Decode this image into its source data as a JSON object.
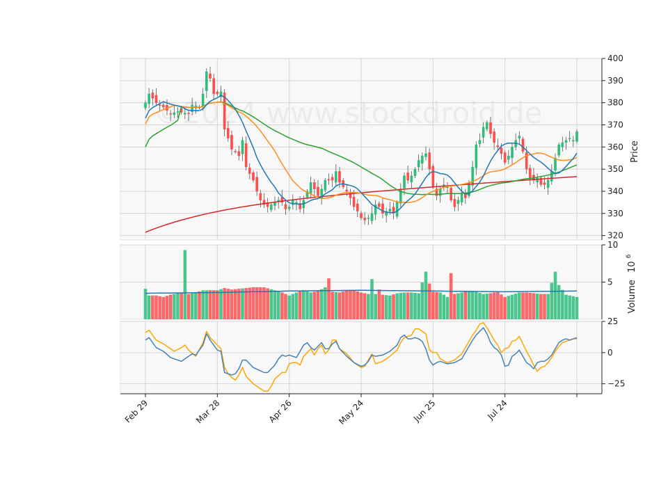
{
  "chart_data": {
    "type": "candlestick",
    "watermark": "©2024 www.stockdroid.de",
    "colors": {
      "up": "#2ebd7b",
      "down": "#ff4d4d",
      "panel_bg": "#f8f8f8",
      "grid": "#d4d4d4",
      "ma_short": "#1f77b4",
      "ma_mid": "#ff8c1a",
      "ma_long": "#2ca02c",
      "ma_200": "#d62728",
      "vol_ma": "#1f77b4",
      "osc_1": "#4682b4",
      "osc_2": "#ffa500"
    },
    "price_panel": {
      "ylabel": "Price",
      "ylim": [
        318,
        400
      ],
      "yticks": [
        320,
        330,
        340,
        350,
        360,
        370,
        380,
        390,
        400
      ]
    },
    "volume_panel": {
      "ylabel": "Volume",
      "ylabel_exponent": "10",
      "ylabel_power": "6",
      "ylim": [
        0,
        10
      ],
      "yticks": [
        5,
        10
      ]
    },
    "osc_panel": {
      "ylim": [
        -33,
        25
      ],
      "yticks": [
        -25,
        0,
        25
      ],
      "ytick_labels": [
        "−25",
        "0",
        "25"
      ]
    },
    "xaxis": {
      "n_bars": 121,
      "ticks": [
        0,
        20,
        40,
        60,
        80,
        100,
        120
      ],
      "tick_labels": [
        "Feb 29",
        "Mar 28",
        "Apr 26",
        "May 24",
        "Jun 25",
        "Jul 24",
        ""
      ]
    },
    "close_anchors": [
      [
        0,
        380
      ],
      [
        1,
        384
      ],
      [
        3,
        380
      ],
      [
        5,
        378
      ],
      [
        7,
        375
      ],
      [
        9,
        376
      ],
      [
        12,
        375
      ],
      [
        13,
        379
      ],
      [
        15,
        378
      ],
      [
        16,
        384
      ],
      [
        17,
        394
      ],
      [
        18,
        391
      ],
      [
        19,
        384
      ],
      [
        20,
        384
      ],
      [
        21,
        385
      ],
      [
        22,
        368
      ],
      [
        23,
        364
      ],
      [
        24,
        359
      ],
      [
        25,
        358
      ],
      [
        26,
        356
      ],
      [
        27,
        363
      ],
      [
        28,
        351
      ],
      [
        30,
        345
      ],
      [
        31,
        340
      ],
      [
        32,
        336
      ],
      [
        33,
        334
      ],
      [
        34,
        333
      ],
      [
        35,
        334
      ],
      [
        36,
        335
      ],
      [
        37,
        336
      ],
      [
        38,
        335
      ],
      [
        39,
        332
      ],
      [
        40,
        333
      ],
      [
        41,
        336
      ],
      [
        42,
        335
      ],
      [
        43,
        332
      ],
      [
        45,
        340
      ],
      [
        46,
        344
      ],
      [
        47,
        341
      ],
      [
        48,
        338
      ],
      [
        49,
        341
      ],
      [
        50,
        345
      ],
      [
        52,
        345
      ],
      [
        53,
        349
      ],
      [
        54,
        344
      ],
      [
        55,
        342
      ],
      [
        56,
        340
      ],
      [
        57,
        337
      ],
      [
        58,
        333
      ],
      [
        59,
        331
      ],
      [
        60,
        328
      ],
      [
        61,
        327
      ],
      [
        62,
        328
      ],
      [
        63,
        330
      ],
      [
        64,
        334
      ],
      [
        65,
        333
      ],
      [
        66,
        330
      ],
      [
        67,
        331
      ],
      [
        68,
        332
      ],
      [
        69,
        330
      ],
      [
        70,
        335
      ],
      [
        71,
        341
      ],
      [
        72,
        347
      ],
      [
        73,
        345
      ],
      [
        74,
        347
      ],
      [
        75,
        350
      ],
      [
        76,
        354
      ],
      [
        77,
        356
      ],
      [
        78,
        357
      ],
      [
        79,
        350
      ],
      [
        80,
        342
      ],
      [
        81,
        338
      ],
      [
        82,
        341
      ],
      [
        83,
        343
      ],
      [
        84,
        342
      ],
      [
        85,
        336
      ],
      [
        86,
        333
      ],
      [
        87,
        336
      ],
      [
        88,
        339
      ],
      [
        89,
        337
      ],
      [
        90,
        344
      ],
      [
        91,
        351
      ],
      [
        92,
        361
      ],
      [
        93,
        363
      ],
      [
        94,
        369
      ],
      [
        95,
        371
      ],
      [
        96,
        366
      ],
      [
        97,
        362
      ],
      [
        98,
        360
      ],
      [
        99,
        357
      ],
      [
        100,
        353
      ],
      [
        101,
        356
      ],
      [
        102,
        360
      ],
      [
        103,
        363
      ],
      [
        104,
        365
      ],
      [
        105,
        358
      ],
      [
        106,
        350
      ],
      [
        107,
        346
      ],
      [
        108,
        345
      ],
      [
        109,
        346
      ],
      [
        110,
        343
      ],
      [
        111,
        343
      ],
      [
        112,
        345
      ],
      [
        113,
        349
      ],
      [
        114,
        355
      ],
      [
        115,
        361
      ],
      [
        116,
        362
      ],
      [
        117,
        363
      ],
      [
        118,
        364
      ],
      [
        119,
        363
      ],
      [
        120,
        367
      ]
    ],
    "volume_anchors": [
      [
        0,
        4.1
      ],
      [
        1,
        3.2
      ],
      [
        3,
        3.2
      ],
      [
        5,
        3.0
      ],
      [
        7,
        3.3
      ],
      [
        10,
        3.6
      ],
      [
        11,
        9.3
      ],
      [
        12,
        3.4
      ],
      [
        14,
        3.6
      ],
      [
        16,
        3.9
      ],
      [
        19,
        3.9
      ],
      [
        20,
        3.9
      ],
      [
        22,
        4.2
      ],
      [
        24,
        4.0
      ],
      [
        26,
        4.1
      ],
      [
        30,
        4.3
      ],
      [
        33,
        4.3
      ],
      [
        36,
        3.9
      ],
      [
        38,
        3.6
      ],
      [
        40,
        3.2
      ],
      [
        42,
        3.6
      ],
      [
        44,
        3.9
      ],
      [
        46,
        3.6
      ],
      [
        48,
        3.8
      ],
      [
        50,
        4.3
      ],
      [
        51,
        5.5
      ],
      [
        52,
        3.7
      ],
      [
        54,
        3.6
      ],
      [
        56,
        3.9
      ],
      [
        58,
        3.9
      ],
      [
        60,
        3.6
      ],
      [
        62,
        3.4
      ],
      [
        63,
        5.4
      ],
      [
        64,
        3.4
      ],
      [
        65,
        4.0
      ],
      [
        66,
        3.3
      ],
      [
        68,
        3.2
      ],
      [
        70,
        3.5
      ],
      [
        72,
        3.6
      ],
      [
        74,
        3.6
      ],
      [
        76,
        3.5
      ],
      [
        78,
        6.4
      ],
      [
        79,
        4.8
      ],
      [
        80,
        3.7
      ],
      [
        82,
        3.6
      ],
      [
        84,
        3.0
      ],
      [
        85,
        6.2
      ],
      [
        86,
        3.4
      ],
      [
        88,
        3.6
      ],
      [
        90,
        3.8
      ],
      [
        92,
        3.7
      ],
      [
        94,
        3.4
      ],
      [
        96,
        3.5
      ],
      [
        98,
        3.7
      ],
      [
        100,
        3.0
      ],
      [
        102,
        3.3
      ],
      [
        104,
        3.6
      ],
      [
        106,
        3.6
      ],
      [
        108,
        3.5
      ],
      [
        110,
        3.4
      ],
      [
        112,
        3.4
      ],
      [
        114,
        6.4
      ],
      [
        115,
        4.6
      ],
      [
        117,
        3.3
      ],
      [
        120,
        3.0
      ]
    ],
    "vol_ma_anchors": [
      [
        0,
        3.5
      ],
      [
        20,
        3.6
      ],
      [
        40,
        3.8
      ],
      [
        60,
        3.9
      ],
      [
        80,
        3.8
      ],
      [
        100,
        3.7
      ],
      [
        120,
        3.8
      ]
    ],
    "osc1_anchors": [
      [
        0,
        10
      ],
      [
        1,
        12
      ],
      [
        3,
        4
      ],
      [
        5,
        1
      ],
      [
        7,
        -4
      ],
      [
        9,
        -6
      ],
      [
        10,
        -7
      ],
      [
        12,
        -3
      ],
      [
        13,
        -1
      ],
      [
        14,
        -2
      ],
      [
        16,
        6
      ],
      [
        17,
        15
      ],
      [
        18,
        10
      ],
      [
        20,
        2
      ],
      [
        21,
        1
      ],
      [
        22,
        -16
      ],
      [
        23,
        -17
      ],
      [
        24,
        -18
      ],
      [
        25,
        -17
      ],
      [
        26,
        -13
      ],
      [
        27,
        -6
      ],
      [
        28,
        -6
      ],
      [
        30,
        -12
      ],
      [
        33,
        -16
      ],
      [
        34,
        -16
      ],
      [
        35,
        -13
      ],
      [
        36,
        -10
      ],
      [
        37,
        -5
      ],
      [
        38,
        -2
      ],
      [
        39,
        -3
      ],
      [
        40,
        -2
      ],
      [
        42,
        -4
      ],
      [
        44,
        6
      ],
      [
        45,
        8
      ],
      [
        46,
        4
      ],
      [
        47,
        2
      ],
      [
        48,
        5
      ],
      [
        49,
        8
      ],
      [
        50,
        3
      ],
      [
        51,
        3
      ],
      [
        52,
        7
      ],
      [
        53,
        9
      ],
      [
        54,
        3
      ],
      [
        56,
        -3
      ],
      [
        58,
        -8
      ],
      [
        60,
        -11
      ],
      [
        61,
        -10
      ],
      [
        62,
        -7
      ],
      [
        63,
        -2
      ],
      [
        64,
        -3
      ],
      [
        66,
        -2
      ],
      [
        68,
        1
      ],
      [
        70,
        6
      ],
      [
        71,
        12
      ],
      [
        72,
        14
      ],
      [
        73,
        11
      ],
      [
        74,
        11
      ],
      [
        75,
        12
      ],
      [
        76,
        11
      ],
      [
        77,
        9
      ],
      [
        78,
        3
      ],
      [
        79,
        -6
      ],
      [
        80,
        -10
      ],
      [
        81,
        -8
      ],
      [
        82,
        -7
      ],
      [
        84,
        -9
      ],
      [
        86,
        -8
      ],
      [
        88,
        -5
      ],
      [
        90,
        5
      ],
      [
        91,
        10
      ],
      [
        92,
        14
      ],
      [
        93,
        17
      ],
      [
        94,
        20
      ],
      [
        95,
        15
      ],
      [
        96,
        8
      ],
      [
        97,
        4
      ],
      [
        98,
        2
      ],
      [
        99,
        -2
      ],
      [
        100,
        -11
      ],
      [
        101,
        -10
      ],
      [
        102,
        -3
      ],
      [
        103,
        -1
      ],
      [
        104,
        2
      ],
      [
        105,
        -3
      ],
      [
        106,
        -8
      ],
      [
        107,
        -10
      ],
      [
        108,
        -13
      ],
      [
        109,
        -8
      ],
      [
        110,
        -7
      ],
      [
        111,
        -7
      ],
      [
        112,
        -5
      ],
      [
        113,
        -2
      ],
      [
        114,
        3
      ],
      [
        115,
        8
      ],
      [
        116,
        10
      ],
      [
        117,
        11
      ],
      [
        118,
        10
      ],
      [
        119,
        11
      ],
      [
        120,
        12
      ]
    ],
    "osc2_anchors": [
      [
        0,
        16
      ],
      [
        1,
        18
      ],
      [
        3,
        10
      ],
      [
        5,
        7
      ],
      [
        7,
        3
      ],
      [
        8,
        1
      ],
      [
        10,
        4
      ],
      [
        11,
        6
      ],
      [
        12,
        2
      ],
      [
        14,
        -3
      ],
      [
        16,
        8
      ],
      [
        17,
        17
      ],
      [
        18,
        12
      ],
      [
        20,
        6
      ],
      [
        21,
        3
      ],
      [
        22,
        -12
      ],
      [
        23,
        -17
      ],
      [
        24,
        -20
      ],
      [
        25,
        -22
      ],
      [
        26,
        -18
      ],
      [
        27,
        -12
      ],
      [
        28,
        -19
      ],
      [
        30,
        -25
      ],
      [
        33,
        -31
      ],
      [
        34,
        -31
      ],
      [
        35,
        -27
      ],
      [
        36,
        -21
      ],
      [
        38,
        -16
      ],
      [
        39,
        -16
      ],
      [
        40,
        -9
      ],
      [
        41,
        -8
      ],
      [
        42,
        -8
      ],
      [
        43,
        -10
      ],
      [
        44,
        -3
      ],
      [
        45,
        0
      ],
      [
        46,
        3
      ],
      [
        47,
        -2
      ],
      [
        48,
        3
      ],
      [
        49,
        6
      ],
      [
        50,
        -1
      ],
      [
        51,
        2
      ],
      [
        52,
        10
      ],
      [
        53,
        10
      ],
      [
        54,
        3
      ],
      [
        56,
        -1
      ],
      [
        58,
        -8
      ],
      [
        60,
        -12
      ],
      [
        61,
        -11
      ],
      [
        62,
        -6
      ],
      [
        63,
        -1
      ],
      [
        64,
        -9
      ],
      [
        66,
        -7
      ],
      [
        68,
        -3
      ],
      [
        70,
        2
      ],
      [
        71,
        8
      ],
      [
        72,
        12
      ],
      [
        74,
        14
      ],
      [
        75,
        19
      ],
      [
        76,
        19
      ],
      [
        77,
        17
      ],
      [
        78,
        15
      ],
      [
        79,
        2
      ],
      [
        80,
        0
      ],
      [
        81,
        0
      ],
      [
        82,
        -5
      ],
      [
        84,
        -8
      ],
      [
        86,
        -6
      ],
      [
        88,
        -1
      ],
      [
        90,
        9
      ],
      [
        91,
        14
      ],
      [
        92,
        18
      ],
      [
        93,
        23
      ],
      [
        94,
        24
      ],
      [
        95,
        20
      ],
      [
        96,
        15
      ],
      [
        97,
        10
      ],
      [
        98,
        6
      ],
      [
        99,
        0
      ],
      [
        100,
        3
      ],
      [
        101,
        4
      ],
      [
        102,
        9
      ],
      [
        103,
        10
      ],
      [
        104,
        13
      ],
      [
        105,
        7
      ],
      [
        106,
        1
      ],
      [
        107,
        -4
      ],
      [
        108,
        -10
      ],
      [
        109,
        -15
      ],
      [
        110,
        -12
      ],
      [
        111,
        -11
      ],
      [
        112,
        -8
      ],
      [
        113,
        -4
      ],
      [
        114,
        1
      ],
      [
        115,
        5
      ],
      [
        116,
        8
      ],
      [
        117,
        9
      ],
      [
        118,
        10
      ],
      [
        119,
        11
      ],
      [
        120,
        11
      ]
    ]
  }
}
